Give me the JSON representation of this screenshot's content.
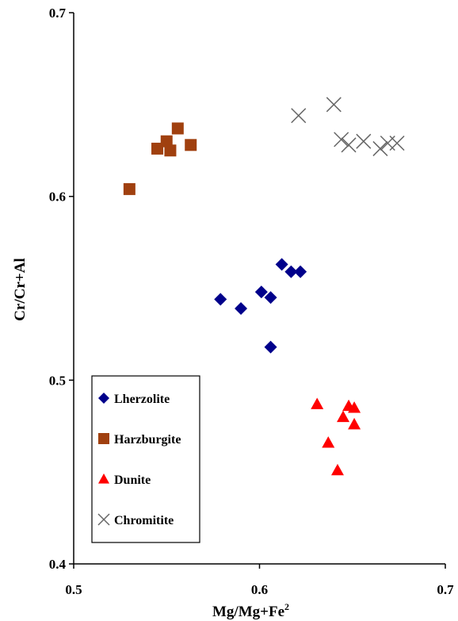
{
  "chart_data": {
    "type": "scatter",
    "title": "",
    "xlabel": "Mg/Mg+Fe",
    "xlabel_superscript": "2",
    "ylabel": "Cr/Cr+Al",
    "xlim": [
      0.5,
      0.7
    ],
    "ylim": [
      0.4,
      0.7
    ],
    "x_ticks": [
      "0.5",
      "0.6",
      "0.7"
    ],
    "y_ticks": [
      "0.7",
      "0.6",
      "0.5",
      "0.4"
    ],
    "grid": false,
    "legend_position": "bottom-left",
    "series": [
      {
        "name": "Lherzolite",
        "marker": "diamond",
        "color": "#00008B",
        "points": [
          [
            0.579,
            0.544
          ],
          [
            0.59,
            0.539
          ],
          [
            0.601,
            0.548
          ],
          [
            0.606,
            0.545
          ],
          [
            0.612,
            0.563
          ],
          [
            0.617,
            0.559
          ],
          [
            0.622,
            0.559
          ],
          [
            0.606,
            0.518
          ]
        ]
      },
      {
        "name": "Harzburgite",
        "marker": "square",
        "color": "#A0400F",
        "points": [
          [
            0.53,
            0.604
          ],
          [
            0.545,
            0.626
          ],
          [
            0.55,
            0.63
          ],
          [
            0.552,
            0.625
          ],
          [
            0.556,
            0.637
          ],
          [
            0.563,
            0.628
          ]
        ]
      },
      {
        "name": "Dunite",
        "marker": "triangle",
        "color": "#FF0000",
        "points": [
          [
            0.631,
            0.487
          ],
          [
            0.637,
            0.466
          ],
          [
            0.642,
            0.451
          ],
          [
            0.645,
            0.48
          ],
          [
            0.648,
            0.486
          ],
          [
            0.651,
            0.476
          ],
          [
            0.651,
            0.485
          ]
        ]
      },
      {
        "name": "Chromitite",
        "marker": "x",
        "color": "#666666",
        "points": [
          [
            0.621,
            0.644
          ],
          [
            0.64,
            0.65
          ],
          [
            0.644,
            0.631
          ],
          [
            0.648,
            0.628
          ],
          [
            0.656,
            0.63
          ],
          [
            0.665,
            0.626
          ],
          [
            0.669,
            0.629
          ],
          [
            0.674,
            0.629
          ]
        ]
      }
    ]
  }
}
